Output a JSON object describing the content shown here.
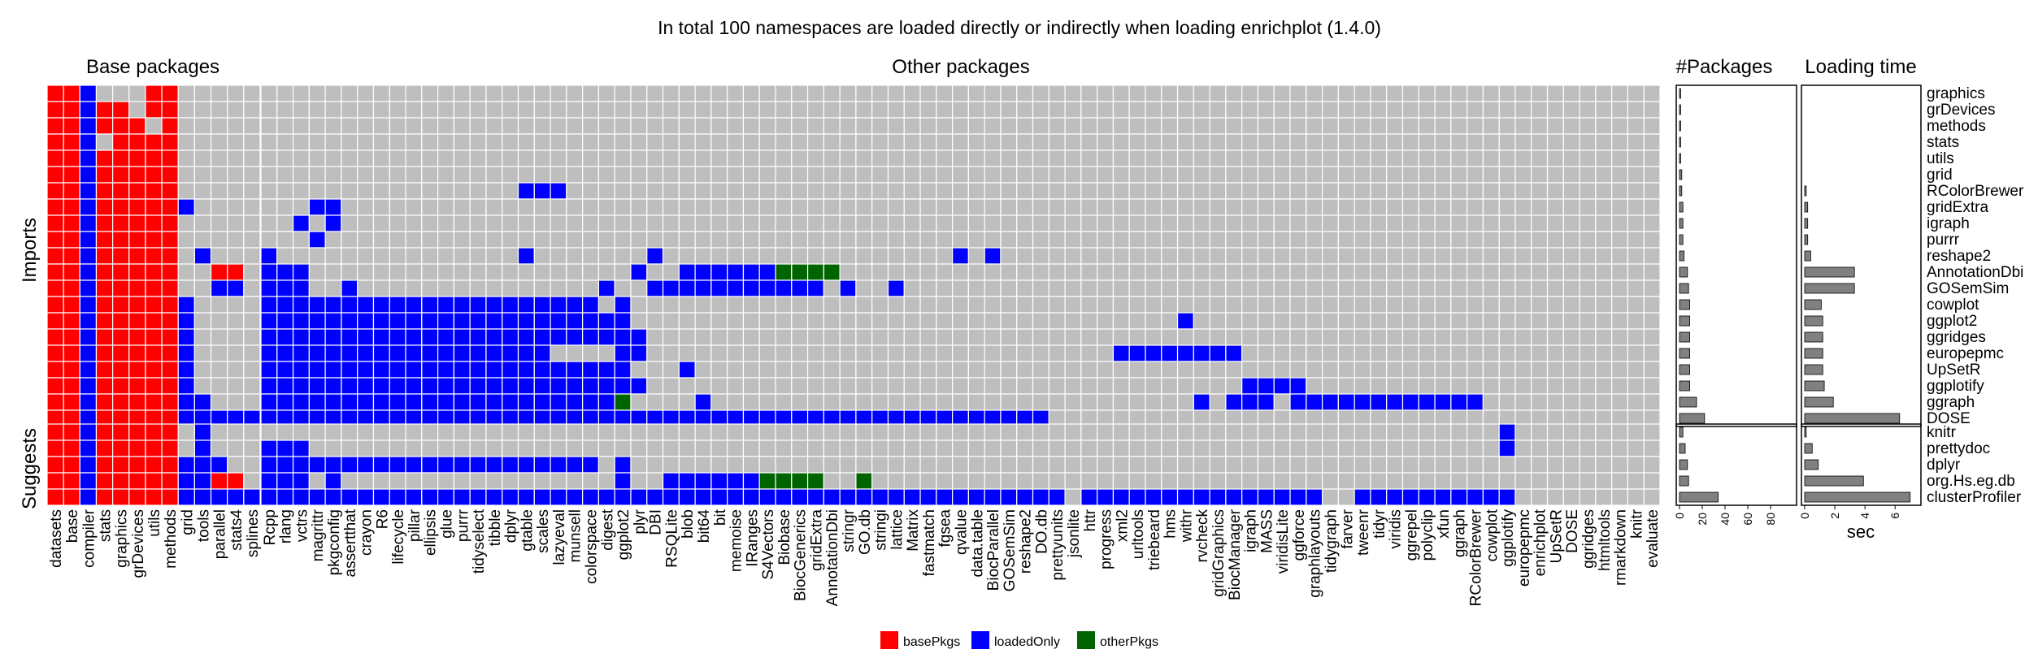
{
  "chart_data": {
    "type": "heatmap",
    "title": "In total 100 namespaces are loaded directly or indirectly when loading enrichplot (1.4.0)",
    "panel_titles": {
      "base": "Base packages",
      "other": "Other packages",
      "count": "#Packages",
      "time": "Loading time"
    },
    "row_groups": [
      {
        "label": "Imports",
        "rows": 21
      },
      {
        "label": "Suggests",
        "rows": 5
      }
    ],
    "base_columns": [
      "datasets",
      "base",
      "compiler",
      "stats",
      "graphics",
      "grDevices",
      "utils",
      "methods",
      "grid",
      "tools",
      "parallel",
      "stats4",
      "splines"
    ],
    "other_columns": [
      "Rcpp",
      "rlang",
      "vctrs",
      "magrittr",
      "pkgconfig",
      "assertthat",
      "crayon",
      "R6",
      "lifecycle",
      "pillar",
      "ellipsis",
      "glue",
      "purrr",
      "tidyselect",
      "tibble",
      "dplyr",
      "gtable",
      "scales",
      "lazyeval",
      "munsell",
      "colorspace",
      "digest",
      "ggplot2",
      "plyr",
      "DBI",
      "RSQLite",
      "blob",
      "bit64",
      "bit",
      "memoise",
      "IRanges",
      "S4Vectors",
      "Biobase",
      "BiocGenerics",
      "gridExtra",
      "AnnotationDbi",
      "stringr",
      "GO.db",
      "stringi",
      "lattice",
      "Matrix",
      "fastmatch",
      "fgsea",
      "qvalue",
      "data.table",
      "BiocParallel",
      "GOSemSim",
      "reshape2",
      "DO.db",
      "prettyunits",
      "jsonlite",
      "httr",
      "progress",
      "xml2",
      "urltools",
      "triebeard",
      "hms",
      "withr",
      "rvcheck",
      "gridGraphics",
      "BiocManager",
      "igraph",
      "MASS",
      "viridisLite",
      "ggforce",
      "graphlayouts",
      "tidygraph",
      "farver",
      "tweenr",
      "tidyr",
      "viridis",
      "ggrepel",
      "polyclip",
      "xfun",
      "ggraph",
      "RColorBrewer",
      "cowplot",
      "ggplotify",
      "europepmc",
      "enrichplot",
      "UpSetR",
      "DOSE",
      "ggridges",
      "htmltools",
      "rmarkdown",
      "knitr",
      "evaluate"
    ],
    "row_labels": [
      "graphics",
      "grDevices",
      "methods",
      "stats",
      "utils",
      "grid",
      "RColorBrewer",
      "gridExtra",
      "igraph",
      "purrr",
      "reshape2",
      "AnnotationDbi",
      "GOSemSim",
      "cowplot",
      "ggplot2",
      "ggridges",
      "europepmc",
      "UpSetR",
      "ggplotify",
      "ggraph",
      "DOSE",
      "knitr",
      "prettydoc",
      "dplyr",
      "org.Hs.eg.db",
      "clusterProfiler"
    ],
    "base_matrix": [
      "BBLG GBBG",
      "BBLBBGBB",
      "BBLBBBGB",
      "BBLGBBBB",
      "BBLBBBBB",
      "BBLBBBBB",
      "BBLBBBBB",
      "BBLBBBBBL",
      "BBLBBBBB",
      "BBLBBBBB",
      "BBLBBBBB L",
      "BBLBBBBB  BB",
      "BBLBBBBB  LL",
      "BBLBBBBBL",
      "BBLBBBBBL",
      "BBLBBBBBL",
      "BBLBBBBBL",
      "BBLBBBBBL",
      "BBLBBBBBL",
      "BBLBBBBBLL",
      "BBLBBBBBLLLLL",
      "BBLBBBBB L",
      "BBLBBBBB L",
      "BBLBBBBBLLL",
      "BBLBBBBBLLBB",
      "BBLBBBBBLLLLL"
    ],
    "other_matrix": [
      "",
      "",
      "",
      "",
      "",
      "",
      "                LLL",
      "   LL",
      "  L L",
      "   L",
      "L               L       L                  L L",
      "LLL                    L  LLLLLLOOOO",
      "LLL  L               L  LLLLLLLLLLL L  L",
      "LLLLLLLLLLLLLLLLLLLLL L",
      "LLLLLLLLLLLLLLLLLLLLLLL                                  L",
      "LLLLLLLLLLLLLLLLLLLLLLLL",
      "LLLLLLLLLLLLLLLLLL    LL                             LLLLLLLL",
      "LLLLLLLLLLLLLLLLLLLLLLL   L",
      "LLLLLLLLLLLLLLLLLLLLLLLL                                     LLLL",
      "LLLLLLLLLLLLLLLLLLLLLLO    L                              L LLL LLLLLLLLLLLL",
      "LLLLLLLLLLLLLLLLLLLLLLLLLLLLLLLLLLLLLLLLLLLLLLLLL",
      "                                                                             L",
      "LLL                                                                          L          LLLL",
      "LLLLLLLLLLLLLLLLLLLLL L",
      "LLL L                 L  LLLLLLOOOO  O",
      "LLLLLLLLLLLLLLLLLLLLLLLLLLLLLLLLLLLLLLLLLLLLLLLLLL LLLLLLLLLLLLLLL  LLLLLLLLLL"
    ],
    "packages_count": [
      1,
      1,
      1,
      1,
      1,
      2,
      2,
      3,
      3,
      3,
      4,
      7,
      8,
      9,
      9,
      9,
      9,
      9,
      9,
      15,
      22,
      3,
      5,
      7,
      8,
      34
    ],
    "loading_time_sec": [
      0,
      0,
      0,
      0,
      0,
      0,
      0.1,
      0.2,
      0.2,
      0.2,
      0.4,
      3.3,
      3.3,
      1.1,
      1.2,
      1.2,
      1.2,
      1.2,
      1.3,
      1.9,
      6.3,
      0.1,
      0.5,
      0.9,
      3.9,
      7.0
    ],
    "count_axis": {
      "ticks": [
        0,
        20,
        40,
        60,
        80
      ],
      "max": 100
    },
    "time_axis": {
      "ticks": [
        0,
        2,
        4,
        6
      ],
      "max": 7.5,
      "label": "sec"
    },
    "legend": [
      {
        "label": "basePkgs",
        "color": "#ff0000"
      },
      {
        "label": "loadedOnly",
        "color": "#0000ff"
      },
      {
        "label": "otherPkgs",
        "color": "#006400"
      }
    ],
    "colors": {
      "empty": "#bebebe",
      "bar": "#808080"
    }
  }
}
